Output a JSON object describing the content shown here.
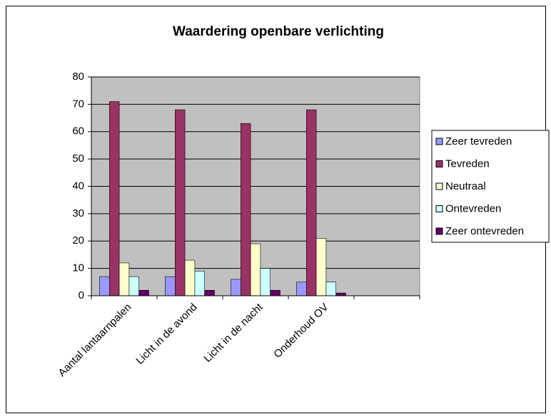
{
  "chart_data": {
    "type": "bar",
    "title": "Waardering openbare verlichting",
    "categories": [
      "Aantal lantaarnpalen",
      "Licht in de avond",
      "Licht in de nacht",
      "Onderhoud OV",
      null
    ],
    "series": [
      {
        "name": "Zeer tevreden",
        "color": "#9999ff",
        "values": [
          7,
          7,
          6,
          5,
          null
        ]
      },
      {
        "name": "Tevreden",
        "color": "#993366",
        "values": [
          71,
          68,
          63,
          68,
          null
        ]
      },
      {
        "name": "Neutraal",
        "color": "#ffffcc",
        "values": [
          12,
          13,
          19,
          21,
          null
        ]
      },
      {
        "name": "Ontevreden",
        "color": "#ccffff",
        "values": [
          7,
          9,
          10,
          5,
          null
        ]
      },
      {
        "name": "Zeer ontevreden",
        "color": "#660066",
        "values": [
          2,
          2,
          2,
          1,
          null
        ]
      }
    ],
    "ylim": [
      0,
      80
    ],
    "yticks": [
      0,
      10,
      20,
      30,
      40,
      50,
      60,
      70,
      80
    ],
    "grid": true,
    "legend": "right",
    "plot_background": "#c0c0c0"
  }
}
